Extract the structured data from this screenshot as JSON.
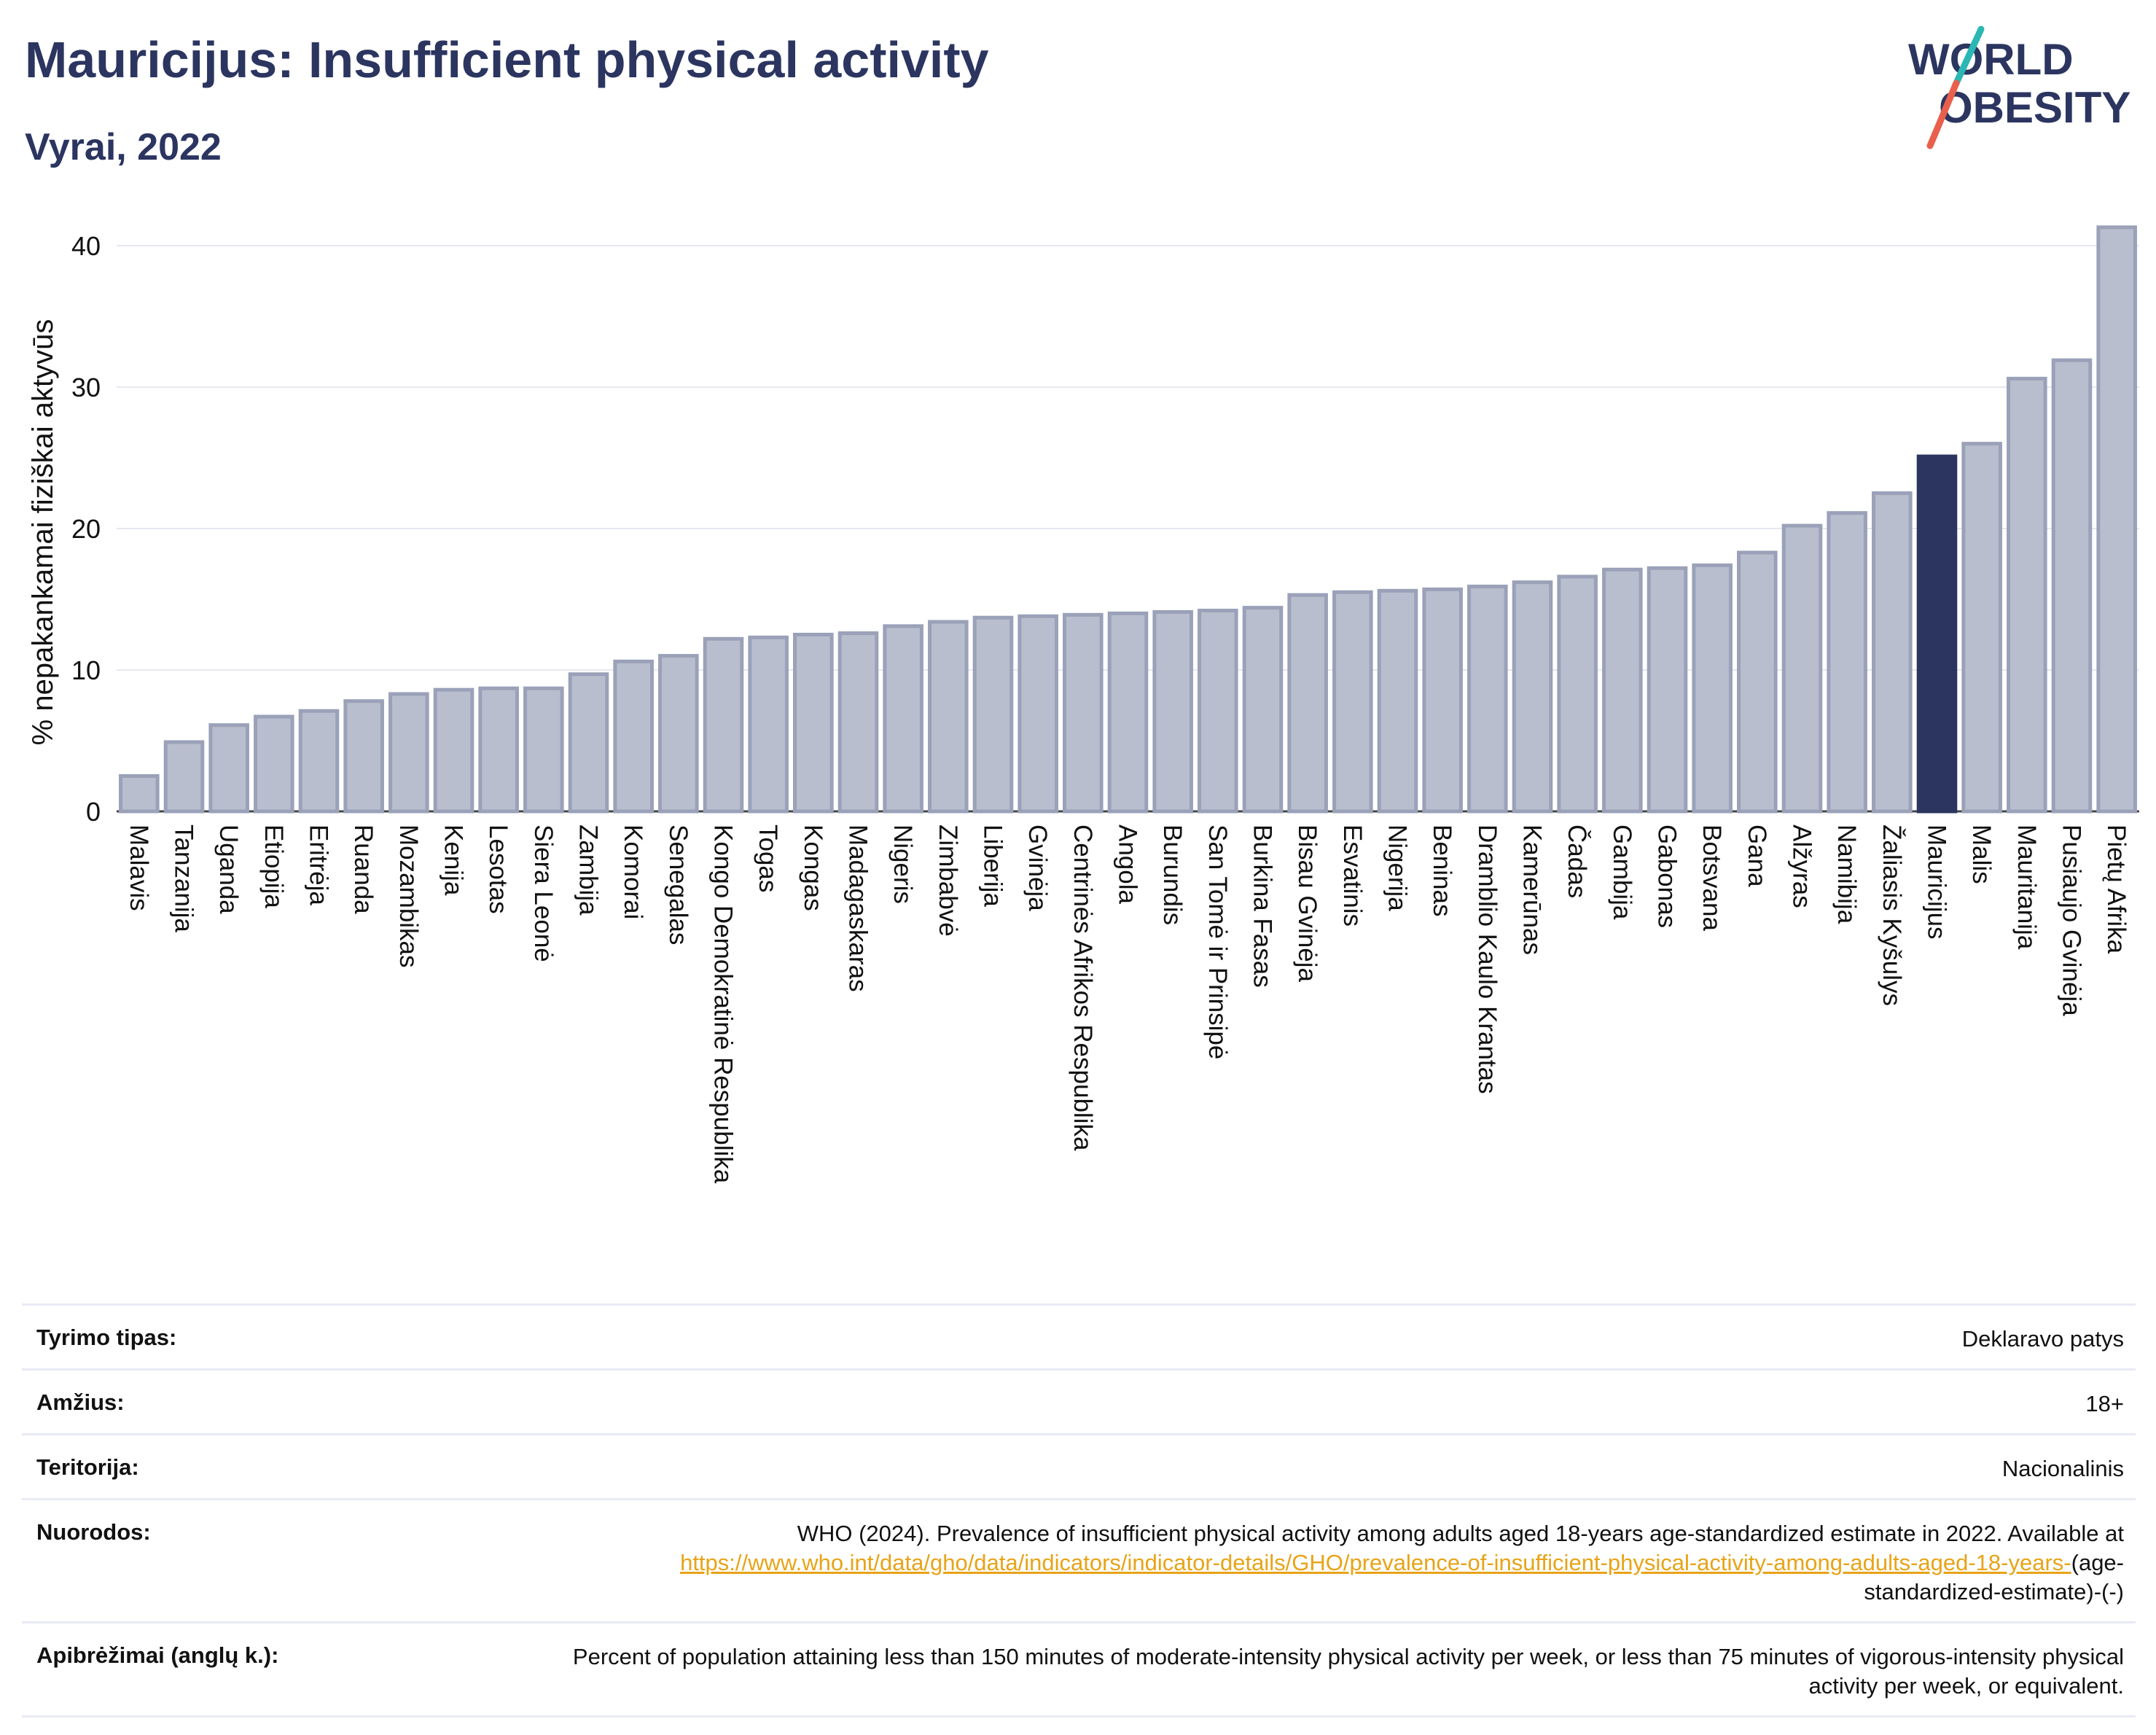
{
  "title": "Mauricijus: Insufficient physical activity",
  "subtitle": "Vyrai, 2022",
  "logo": {
    "line1": "WORLD",
    "line2": "OBESITY",
    "accent_teal": "#2bb7b3",
    "accent_red": "#e8604c",
    "color": "#2b3560"
  },
  "colors": {
    "bar": "#b9bece",
    "bar_stroke": "#9aa1b8",
    "highlight": "#2b3560",
    "axis_text": "#111111"
  },
  "chart_data": {
    "type": "bar",
    "ylabel": "% nepakankamai fiziškai aktyvūs",
    "ylim": [
      0,
      42
    ],
    "yticks": [
      0,
      10,
      20,
      30,
      40
    ],
    "highlight": "Mauricijus",
    "categories": [
      "Malavis",
      "Tanzanija",
      "Uganda",
      "Etiopija",
      "Eritrėja",
      "Ruanda",
      "Mozambikas",
      "Kenija",
      "Lesotas",
      "Siera Leonė",
      "Zambija",
      "Komorai",
      "Senegalas",
      "Kongo Demokratinė Respublika",
      "Togas",
      "Kongas",
      "Madagaskaras",
      "Nigeris",
      "Zimbabvė",
      "Liberija",
      "Gvinėja",
      "Centrinės Afrikos Respublika",
      "Angola",
      "Burundis",
      "San Tomė ir Prinsipė",
      "Burkina Fasas",
      "Bisau Gvinėja",
      "Esvatinis",
      "Nigerija",
      "Beninas",
      "Dramblio Kaulo Krantas",
      "Kamerūnas",
      "Čadas",
      "Gambija",
      "Gabonas",
      "Botsvana",
      "Gana",
      "Alžyras",
      "Namibija",
      "Žaliasis Kyšulys",
      "Mauricijus",
      "Malis",
      "Mauritanija",
      "Pusiaujo Gvinėja",
      "Pietų Afrika"
    ],
    "values": [
      2.5,
      4.9,
      6.1,
      6.7,
      7.1,
      7.8,
      8.3,
      8.6,
      8.7,
      8.7,
      9.7,
      10.6,
      11.0,
      12.2,
      12.3,
      12.5,
      12.6,
      13.1,
      13.4,
      13.7,
      13.8,
      13.9,
      14.0,
      14.1,
      14.2,
      14.4,
      15.3,
      15.5,
      15.6,
      15.7,
      15.9,
      16.2,
      16.6,
      17.1,
      17.2,
      17.4,
      18.3,
      20.2,
      21.1,
      22.5,
      25.1,
      26.0,
      30.6,
      31.9,
      41.3
    ]
  },
  "info": [
    {
      "label": "Tyrimo tipas:",
      "value": "Deklaravo patys"
    },
    {
      "label": "Amžius:",
      "value": "18+"
    },
    {
      "label": "Teritorija:",
      "value": "Nacionalinis"
    },
    {
      "label": "Nuorodos:",
      "value": "WHO (2024). Prevalence of insufficient physical activity among adults aged 18-years age-standardized estimate in 2022. Available at",
      "link": "https://www.who.int/data/gho/data/indicators/indicator-details/GHO/prevalence-of-insufficient-physical-activity-among-adults-aged-18-years-",
      "suffix": "(age-standardized-estimate)-(-)"
    },
    {
      "label": "Apibrėžimai (anglų k.):",
      "value": "Percent of population attaining less than 150 minutes of moderate-intensity physical activity per week, or less than 75 minutes of vigorous-intensity physical activity per week, or equivalent."
    }
  ]
}
